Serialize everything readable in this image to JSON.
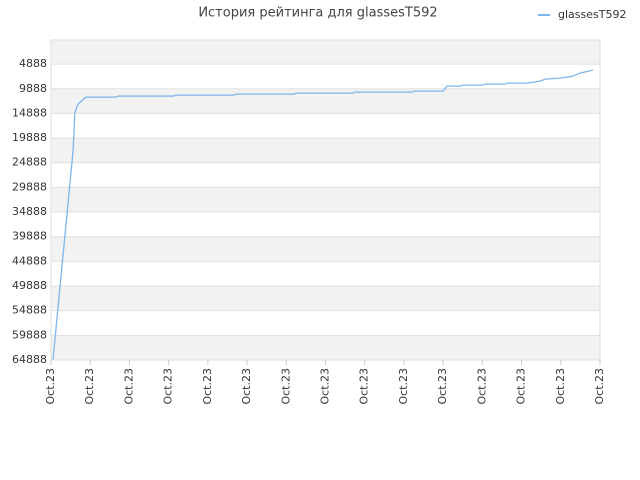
{
  "chart_data": {
    "type": "line",
    "title": "История рейтинга для glassesT592",
    "series": [
      {
        "name": "glassesT592",
        "color": "#7cb5ec",
        "x": [
          0.05,
          0.56,
          0.61,
          0.69,
          0.89,
          1.66,
          1.71,
          3.14,
          3.19,
          4.67,
          4.72,
          6.2,
          6.25,
          7.7,
          7.75,
          9.21,
          9.26,
          10.0,
          10.1,
          10.43,
          10.51,
          10.99,
          11.07,
          11.58,
          11.63,
          12.14,
          12.47,
          12.6,
          12.98,
          13.31,
          13.49,
          13.82
        ],
        "values": [
          64888,
          22723,
          14617,
          12995,
          11576,
          11576,
          11373,
          11373,
          11171,
          11171,
          10968,
          10968,
          10766,
          10766,
          10563,
          10563,
          10360,
          10360,
          9347,
          9347,
          9144,
          9144,
          8942,
          8942,
          8739,
          8739,
          8333,
          7928,
          7725,
          7320,
          6712,
          6104
        ]
      }
    ],
    "xlim": [
      0,
      14
    ],
    "xticks": [
      {
        "value": 0,
        "label": "Oct.23"
      },
      {
        "value": 1,
        "label": "Oct.23"
      },
      {
        "value": 2,
        "label": "Oct.23"
      },
      {
        "value": 3,
        "label": "Oct.23"
      },
      {
        "value": 4,
        "label": "Oct.23"
      },
      {
        "value": 5,
        "label": "Oct.23"
      },
      {
        "value": 6,
        "label": "Oct.23"
      },
      {
        "value": 7,
        "label": "Oct.23"
      },
      {
        "value": 8,
        "label": "Oct.23"
      },
      {
        "value": 9,
        "label": "Oct.23"
      },
      {
        "value": 10,
        "label": "Oct.23"
      },
      {
        "value": 11,
        "label": "Oct.23"
      },
      {
        "value": 12,
        "label": "Oct.23"
      },
      {
        "value": 13,
        "label": "Oct.23"
      },
      {
        "value": 14,
        "label": "Oct.23"
      }
    ],
    "ylim": [
      64888,
      0
    ],
    "yticks": [
      4888,
      9888,
      14888,
      19888,
      24888,
      29888,
      34888,
      39888,
      44888,
      49888,
      54888,
      59888,
      64888
    ],
    "grid": true,
    "legend": "top-right"
  }
}
